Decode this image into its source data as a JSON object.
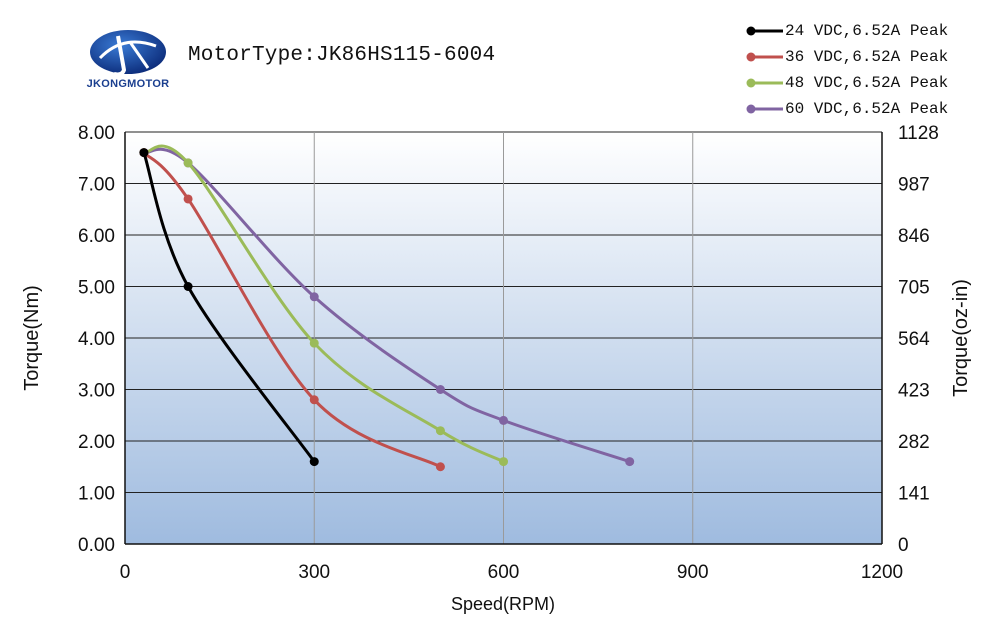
{
  "header": {
    "brand": "JKONGMOTOR",
    "motor_type": "MotorType:JK86HS115-6004"
  },
  "colors": {
    "plot_bg_top": "#ffffff",
    "plot_bg_bottom": "#9fbbdf",
    "grid": "#9a9a9a",
    "logo_blue": "#1b3f8f"
  },
  "icons": {
    "logo": "jkongmotor-logo-icon"
  },
  "chart_data": {
    "type": "line",
    "title": "MotorType:JK86HS115-6004",
    "xlabel": "Speed(RPM)",
    "ylabel": "Torque(Nm)",
    "y2label": "Torque(oz-in)",
    "xlim": [
      0,
      1200
    ],
    "ylim": [
      0,
      8
    ],
    "xticks": [
      "0",
      "300",
      "600",
      "900",
      "1200"
    ],
    "yticks": [
      "0.00",
      "1.00",
      "2.00",
      "3.00",
      "4.00",
      "5.00",
      "6.00",
      "7.00",
      "8.00"
    ],
    "y2ticks": [
      "0",
      "141",
      "282",
      "423",
      "564",
      "705",
      "846",
      "987",
      "1128"
    ],
    "grid": true,
    "legend_position": "top-right",
    "series": [
      {
        "name": "24 VDC,6.52A Peak",
        "color": "#000000",
        "x": [
          30,
          100,
          300
        ],
        "y": [
          7.6,
          5.0,
          1.6
        ]
      },
      {
        "name": "36 VDC,6.52A Peak",
        "color": "#c0504d",
        "x": [
          30,
          100,
          300,
          500
        ],
        "y": [
          7.6,
          6.7,
          2.8,
          1.5
        ]
      },
      {
        "name": "48 VDC,6.52A Peak",
        "color": "#9bbb59",
        "x": [
          30,
          100,
          300,
          500,
          600
        ],
        "y": [
          7.6,
          7.4,
          3.9,
          2.2,
          1.6
        ]
      },
      {
        "name": "60 VDC,6.52A Peak",
        "color": "#8064a2",
        "x": [
          30,
          100,
          300,
          500,
          600,
          800
        ],
        "y": [
          7.6,
          7.4,
          4.8,
          3.0,
          2.4,
          1.6
        ]
      }
    ]
  }
}
